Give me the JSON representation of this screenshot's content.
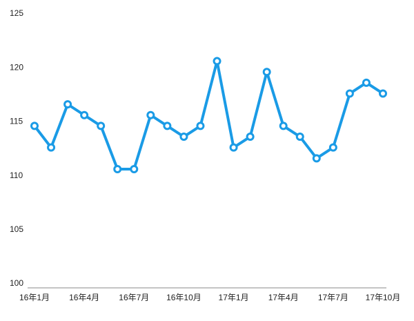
{
  "chart_data": {
    "type": "line",
    "categories": [
      "16年1月",
      null,
      null,
      "16年4月",
      null,
      null,
      "16年7月",
      null,
      null,
      "16年10月",
      null,
      null,
      "17年1月",
      null,
      null,
      "17年4月",
      null,
      null,
      "17年7月",
      null,
      null,
      "17年10月"
    ],
    "series": [
      {
        "color": "#1a9be6",
        "values": [
          115,
          113,
          117,
          116,
          115,
          111,
          111,
          116,
          115,
          114,
          115,
          121,
          113,
          114,
          120,
          115,
          114,
          112,
          113,
          118,
          119,
          118
        ]
      }
    ],
    "ylim": [
      100,
      125
    ],
    "yticks": [
      100,
      105,
      110,
      115,
      120,
      125
    ],
    "grid": false
  }
}
